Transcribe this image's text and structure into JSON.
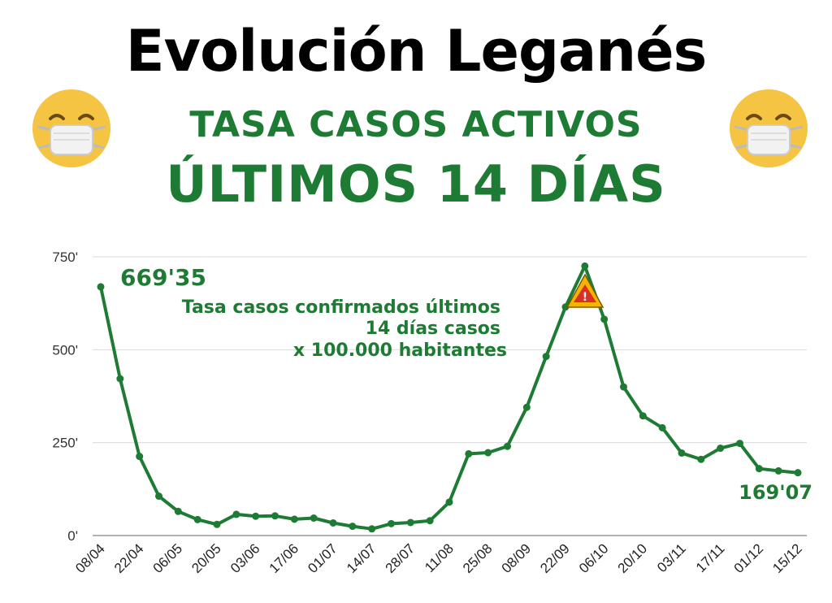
{
  "header": {
    "title": "Evolución Leganés",
    "subtitle_line1": "TASA CASOS ACTIVOS",
    "subtitle_line2": "ÚLTIMOS 14 DÍAS"
  },
  "colors": {
    "green": "#1e7b34",
    "grid": "#d9d9d9",
    "emoji_face": "#f6c443",
    "mask": "#f2f2f2",
    "warning_fill": "#f4b400",
    "warning_inner": "#d93025"
  },
  "icons": [
    "masked-face-emoji-icon",
    "warning-icon"
  ],
  "annotations": {
    "start_value": "669'35",
    "end_value": "169'07",
    "note_lines": [
      "Tasa casos confirmados últimos",
      "14 días  casos",
      "x 100.000 habitantes"
    ]
  },
  "chart_data": {
    "type": "line",
    "grid": true,
    "ylim": [
      0,
      750
    ],
    "y_ticks": [
      {
        "value": 0,
        "label": "0'"
      },
      {
        "value": 250,
        "label": "250'"
      },
      {
        "value": 500,
        "label": "500'"
      },
      {
        "value": 750,
        "label": "750'"
      }
    ],
    "x_tick_labels": [
      "08/04",
      "22/04",
      "06/05",
      "20/05",
      "03/06",
      "17/06",
      "01/07",
      "14/07",
      "28/07",
      "11/08",
      "25/08",
      "08/09",
      "22/09",
      "06/10",
      "20/10",
      "03/11",
      "17/11",
      "01/12",
      "15/12"
    ],
    "values": [
      669.35,
      422,
      213,
      106,
      65,
      43,
      30,
      57,
      52,
      53,
      44,
      47,
      34,
      25,
      18,
      32,
      35,
      40,
      90,
      220,
      223,
      240,
      345,
      482,
      615,
      725,
      582,
      400,
      322,
      290,
      222,
      205,
      235,
      248,
      180,
      174,
      169.07
    ]
  }
}
